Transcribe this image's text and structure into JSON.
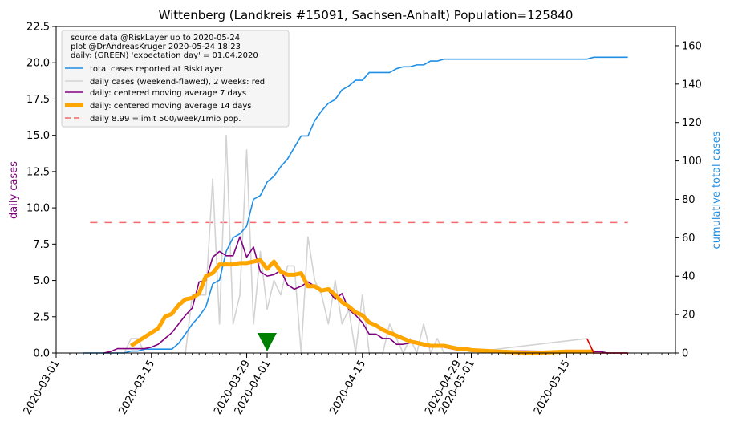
{
  "chart_data": {
    "type": "line",
    "title": "Wittenberg (Landkreis #15091, Sachsen-Anhalt) Population=125840",
    "ylabel_left": "daily cases",
    "ylabel_right": "cumulative total cases",
    "x_start": "2020-03-01",
    "x_end": "2020-05-31",
    "ylim_left": [
      0,
      22.5
    ],
    "ylim_right": [
      0,
      170
    ],
    "xticks": [
      "2020-03-01",
      "2020-03-15",
      "2020-03-29",
      "2020-04-01",
      "2020-04-15",
      "2020-04-29",
      "2020-05-01",
      "2020-05-15"
    ],
    "yticks_left": [
      "0.0",
      "2.5",
      "5.0",
      "7.5",
      "10.0",
      "12.5",
      "15.0",
      "17.5",
      "20.0",
      "22.5"
    ],
    "yticks_right": [
      "0",
      "20",
      "40",
      "60",
      "80",
      "100",
      "120",
      "140",
      "160"
    ],
    "legend_position": "top-left",
    "legend_header": [
      "source data @RiskLayer up to 2020-05-24",
      "plot @DrAndreasKruger 2020-05-24 18:23",
      "daily: (GREEN) 'expectation day' = 01.04.2020"
    ],
    "legend": [
      {
        "label": "total cases reported at RiskLayer",
        "color": "#1f8fe6",
        "style": "solid",
        "width": 1.6
      },
      {
        "label": "daily cases (weekend-flawed), 2 weeks: red",
        "color": "#d3d3d3",
        "style": "solid",
        "width": 1.6
      },
      {
        "label": "daily: centered moving average 7 days",
        "color": "#800080",
        "style": "solid",
        "width": 1.6
      },
      {
        "label": "daily: centered moving average 14 days",
        "color": "#ffa500",
        "style": "solid",
        "width": 5
      },
      {
        "label": "daily 8.99 =limit 500/week/1mio pop.",
        "color": "#f46a6a",
        "style": "dashed",
        "width": 1.6
      }
    ],
    "limit_line": {
      "value": 8.99,
      "x_from": "2020-03-06",
      "x_to": "2020-05-24"
    },
    "expectation_day": "2020-04-01",
    "series": [
      {
        "name": "total cases reported at RiskLayer",
        "axis": "right",
        "x": [
          "2020-03-05",
          "2020-03-10",
          "2020-03-11",
          "2020-03-12",
          "2020-03-13",
          "2020-03-14",
          "2020-03-15",
          "2020-03-16",
          "2020-03-17",
          "2020-03-18",
          "2020-03-19",
          "2020-03-20",
          "2020-03-21",
          "2020-03-22",
          "2020-03-23",
          "2020-03-24",
          "2020-03-25",
          "2020-03-26",
          "2020-03-27",
          "2020-03-28",
          "2020-03-29",
          "2020-03-30",
          "2020-03-31",
          "2020-04-01",
          "2020-04-02",
          "2020-04-03",
          "2020-04-04",
          "2020-04-05",
          "2020-04-06",
          "2020-04-07",
          "2020-04-08",
          "2020-04-09",
          "2020-04-10",
          "2020-04-11",
          "2020-04-12",
          "2020-04-13",
          "2020-04-14",
          "2020-04-15",
          "2020-04-16",
          "2020-04-17",
          "2020-04-18",
          "2020-04-19",
          "2020-04-20",
          "2020-04-21",
          "2020-04-22",
          "2020-04-23",
          "2020-04-24",
          "2020-04-25",
          "2020-04-26",
          "2020-04-27",
          "2020-04-28",
          "2020-04-29",
          "2020-04-30",
          "2020-05-18",
          "2020-05-19",
          "2020-05-24"
        ],
        "values": [
          0,
          0,
          0,
          1,
          1,
          2,
          2,
          2,
          2,
          2,
          5,
          10,
          15,
          19,
          24,
          36,
          38,
          53,
          60,
          62,
          66,
          80,
          82,
          89,
          92,
          97,
          101,
          107,
          113,
          113,
          121,
          126,
          130,
          132,
          137,
          139,
          142,
          142,
          146,
          146,
          146,
          146,
          148,
          149,
          149,
          150,
          150,
          152,
          152,
          153,
          153,
          153,
          153,
          153,
          154,
          154
        ]
      },
      {
        "name": "daily cases (weekend-flawed), 2 weeks: red",
        "axis": "left",
        "x": [
          "2020-03-05",
          "2020-03-10",
          "2020-03-11",
          "2020-03-12",
          "2020-03-13",
          "2020-03-14",
          "2020-03-15",
          "2020-03-16",
          "2020-03-17",
          "2020-03-18",
          "2020-03-19",
          "2020-03-20",
          "2020-03-21",
          "2020-03-22",
          "2020-03-23",
          "2020-03-24",
          "2020-03-25",
          "2020-03-26",
          "2020-03-27",
          "2020-03-28",
          "2020-03-29",
          "2020-03-30",
          "2020-03-31",
          "2020-04-01",
          "2020-04-02",
          "2020-04-03",
          "2020-04-04",
          "2020-04-05",
          "2020-04-06",
          "2020-04-07",
          "2020-04-08",
          "2020-04-09",
          "2020-04-10",
          "2020-04-11",
          "2020-04-12",
          "2020-04-13",
          "2020-04-14",
          "2020-04-15",
          "2020-04-16",
          "2020-04-17",
          "2020-04-18",
          "2020-04-19",
          "2020-04-20",
          "2020-04-21",
          "2020-04-22",
          "2020-04-23",
          "2020-04-24",
          "2020-04-25",
          "2020-04-26",
          "2020-04-27",
          "2020-04-28",
          "2020-04-29",
          "2020-04-30",
          "2020-05-18",
          "2020-05-19",
          "2020-05-24"
        ],
        "values": [
          0,
          0,
          0,
          1,
          1,
          0,
          0,
          0,
          0,
          0,
          0,
          0,
          4,
          4,
          4,
          12,
          2,
          15,
          2,
          4,
          14,
          2,
          7,
          3,
          5,
          4,
          6,
          6,
          0,
          8,
          5,
          4,
          2,
          5,
          2,
          3,
          0,
          4,
          0,
          0,
          0,
          2,
          1,
          0,
          1,
          0,
          2,
          0,
          1,
          0,
          0,
          0,
          0,
          1,
          0,
          0
        ]
      },
      {
        "name": "daily: centered moving average 7 days",
        "axis": "left",
        "x": [
          "2020-03-08",
          "2020-03-09",
          "2020-03-10",
          "2020-03-11",
          "2020-03-12",
          "2020-03-13",
          "2020-03-14",
          "2020-03-15",
          "2020-03-16",
          "2020-03-17",
          "2020-03-18",
          "2020-03-19",
          "2020-03-20",
          "2020-03-21",
          "2020-03-22",
          "2020-03-23",
          "2020-03-24",
          "2020-03-25",
          "2020-03-26",
          "2020-03-27",
          "2020-03-28",
          "2020-03-29",
          "2020-03-30",
          "2020-03-31",
          "2020-04-01",
          "2020-04-02",
          "2020-04-03",
          "2020-04-04",
          "2020-04-05",
          "2020-04-06",
          "2020-04-07",
          "2020-04-08",
          "2020-04-09",
          "2020-04-10",
          "2020-04-11",
          "2020-04-12",
          "2020-04-13",
          "2020-04-14",
          "2020-04-15",
          "2020-04-16",
          "2020-04-17",
          "2020-04-18",
          "2020-04-19",
          "2020-04-20",
          "2020-04-21",
          "2020-04-22",
          "2020-04-23",
          "2020-04-24",
          "2020-04-25",
          "2020-04-26",
          "2020-04-27",
          "2020-04-28",
          "2020-04-29",
          "2020-05-15",
          "2020-05-18",
          "2020-05-19",
          "2020-05-20",
          "2020-05-21",
          "2020-05-24"
        ],
        "values": [
          0,
          0.1,
          0.3,
          0.3,
          0.3,
          0.3,
          0.3,
          0.4,
          0.6,
          1.0,
          1.4,
          2.0,
          2.6,
          3.1,
          4.9,
          5.0,
          6.6,
          7.0,
          6.7,
          6.7,
          8.0,
          6.6,
          7.3,
          5.6,
          5.3,
          5.4,
          5.7,
          4.7,
          4.4,
          4.6,
          4.9,
          4.6,
          4.4,
          4.3,
          3.7,
          4.1,
          3.0,
          2.6,
          2.1,
          1.3,
          1.3,
          1.0,
          1.0,
          0.6,
          0.6,
          0.7,
          0.7,
          0.5,
          0.4,
          0.4,
          0.4,
          0.3,
          0.2,
          0.1,
          0.1,
          0.1,
          0.1,
          0,
          0
        ]
      },
      {
        "name": "daily: centered moving average 14 days",
        "axis": "left",
        "x": [
          "2020-03-12",
          "2020-03-13",
          "2020-03-14",
          "2020-03-15",
          "2020-03-16",
          "2020-03-17",
          "2020-03-18",
          "2020-03-19",
          "2020-03-20",
          "2020-03-21",
          "2020-03-22",
          "2020-03-23",
          "2020-03-24",
          "2020-03-25",
          "2020-03-26",
          "2020-03-27",
          "2020-03-28",
          "2020-03-29",
          "2020-03-30",
          "2020-03-31",
          "2020-04-01",
          "2020-04-02",
          "2020-04-03",
          "2020-04-04",
          "2020-04-05",
          "2020-04-06",
          "2020-04-07",
          "2020-04-08",
          "2020-04-09",
          "2020-04-10",
          "2020-04-11",
          "2020-04-12",
          "2020-04-13",
          "2020-04-14",
          "2020-04-15",
          "2020-04-16",
          "2020-04-17",
          "2020-04-18",
          "2020-04-19",
          "2020-04-20",
          "2020-04-21",
          "2020-04-22",
          "2020-04-23",
          "2020-04-24",
          "2020-04-25",
          "2020-04-26",
          "2020-04-27",
          "2020-04-28",
          "2020-04-29",
          "2020-04-30",
          "2020-05-01",
          "2020-05-05",
          "2020-05-10",
          "2020-05-15",
          "2020-05-19"
        ],
        "values": [
          0.5,
          0.8,
          1.1,
          1.4,
          1.7,
          2.5,
          2.7,
          3.3,
          3.7,
          3.8,
          4.1,
          5.3,
          5.5,
          6.1,
          6.1,
          6.1,
          6.2,
          6.2,
          6.3,
          6.4,
          5.8,
          6.3,
          5.6,
          5.4,
          5.4,
          5.5,
          4.6,
          4.6,
          4.3,
          4.4,
          4.0,
          3.5,
          3.2,
          2.8,
          2.6,
          2.1,
          1.9,
          1.6,
          1.4,
          1.2,
          1.0,
          0.8,
          0.7,
          0.6,
          0.5,
          0.5,
          0.5,
          0.4,
          0.3,
          0.3,
          0.2,
          0.1,
          0,
          0.1,
          0.1
        ]
      }
    ]
  }
}
